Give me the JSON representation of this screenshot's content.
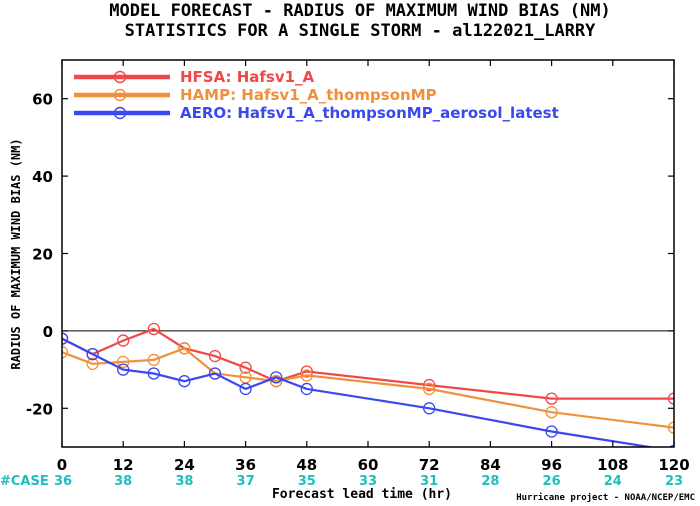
{
  "chart_data": {
    "type": "line",
    "title": "MODEL FORECAST - RADIUS OF MAXIMUM WIND BIAS (NM)",
    "subtitle": "STATISTICS FOR A SINGLE STORM - al122021_LARRY",
    "xlabel": "Forecast lead time (hr)",
    "ylabel": "RADIUS OF MAXIMUM WIND BIAS (NM)",
    "xlim": [
      0,
      120
    ],
    "ylim": [
      -30,
      70
    ],
    "xticks": [
      0,
      12,
      24,
      36,
      48,
      60,
      72,
      84,
      96,
      108,
      120
    ],
    "yticks": [
      -20,
      0,
      20,
      40,
      60
    ],
    "zero_line": true,
    "legend_position": "top-left",
    "case_label": "#CASE",
    "case_color": "#1abfbf",
    "case_counts": [
      36,
      38,
      38,
      37,
      35,
      33,
      31,
      28,
      26,
      24,
      23
    ],
    "credit": "Hurricane project - NOAA/NCEP/EMC",
    "series": [
      {
        "name": "HFSA: Hafsv1_A",
        "color": "#f04848",
        "x": [
          0,
          6,
          12,
          18,
          24,
          30,
          36,
          42,
          48,
          72,
          96,
          120
        ],
        "y": [
          -2,
          -6,
          -2.5,
          0.5,
          -4.5,
          -6.5,
          -9.5,
          -13,
          -10.5,
          -14,
          -17.5,
          -17.5
        ]
      },
      {
        "name": "HAMP: Hafsv1_A_thompsonMP",
        "color": "#f0903a",
        "x": [
          0,
          6,
          12,
          18,
          24,
          30,
          36,
          42,
          48,
          72,
          96,
          120
        ],
        "y": [
          -5.5,
          -8.5,
          -8,
          -7.5,
          -4.5,
          -11,
          -12,
          -13,
          -11.5,
          -15,
          -21,
          -25
        ]
      },
      {
        "name": "AERO: Hafsv1_A_thompsonMP_aerosol_latest",
        "color": "#3a48f0",
        "x": [
          0,
          6,
          12,
          18,
          24,
          30,
          36,
          42,
          48,
          72,
          96,
          120
        ],
        "y": [
          -2,
          -6,
          -10,
          -11,
          -13,
          -11,
          -15,
          -12,
          -15,
          -20,
          -26,
          -31
        ]
      }
    ]
  }
}
